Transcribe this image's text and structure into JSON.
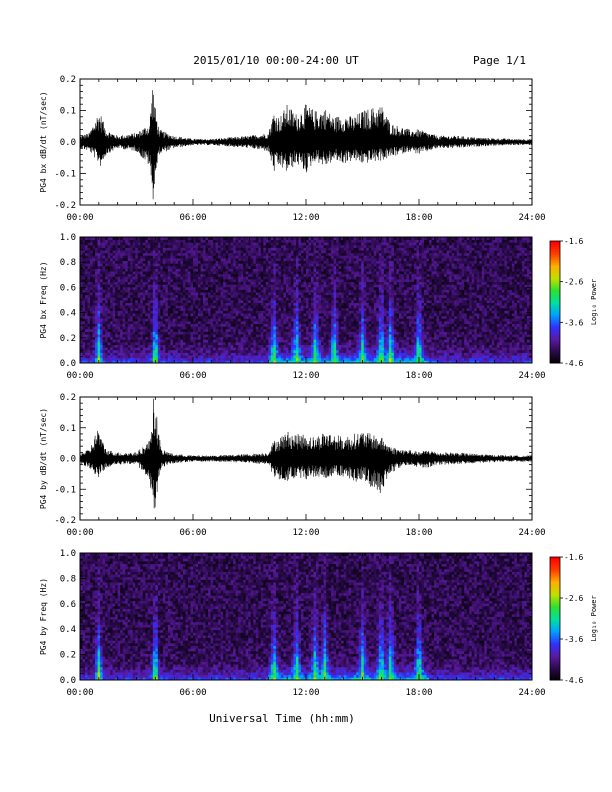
{
  "header": {
    "title": "2015/01/10  00:00-24:00 UT",
    "page_label": "Page 1/1"
  },
  "footer": {
    "xlabel": "Universal Time (hh:mm)"
  },
  "colors": {
    "background": "#ffffff",
    "axis": "#000000",
    "trace": "#000000",
    "spectrogram_colormap": [
      "#000000",
      "#2a0a4a",
      "#5a1aa0",
      "#3030ff",
      "#00a0ff",
      "#00e0a0",
      "#30e030",
      "#c0e000",
      "#ffb000",
      "#ff4000",
      "#ff0000"
    ]
  },
  "chart_data": [
    {
      "type": "line",
      "name": "bx-dbdt-panel",
      "ylabel": "PG4 bx dB/dt (nT/sec)",
      "xlabel": "",
      "xlim": [
        "00:00",
        "24:00"
      ],
      "ylim": [
        -0.2,
        0.2
      ],
      "x_ticks": [
        "00:00",
        "06:00",
        "12:00",
        "18:00",
        "24:00"
      ],
      "y_ticks": [
        "-0.2",
        "-0.1",
        "0.0",
        "0.1",
        "0.2"
      ],
      "grid": false,
      "envelope": {
        "time_hours": [
          0,
          0.5,
          1,
          1.1,
          1.4,
          2,
          3,
          3.7,
          3.85,
          4,
          4.2,
          5,
          6,
          7,
          8,
          9,
          10,
          10.3,
          10.6,
          11,
          11.5,
          12,
          12.5,
          13,
          13.5,
          14,
          14.5,
          15,
          16,
          16.5,
          17,
          17.5,
          18,
          18.5,
          19,
          20,
          21,
          22,
          23,
          24
        ],
        "max": [
          0.02,
          0.03,
          0.1,
          0.09,
          0.04,
          0.02,
          0.03,
          0.06,
          0.2,
          0.11,
          0.04,
          0.02,
          0.01,
          0.01,
          0.015,
          0.02,
          0.03,
          0.1,
          0.08,
          0.12,
          0.09,
          0.12,
          0.1,
          0.11,
          0.08,
          0.09,
          0.08,
          0.1,
          0.12,
          0.06,
          0.05,
          0.04,
          0.04,
          0.03,
          0.02,
          0.02,
          0.015,
          0.012,
          0.01,
          0.01
        ],
        "min": [
          -0.02,
          -0.03,
          -0.07,
          -0.08,
          -0.04,
          -0.02,
          -0.03,
          -0.08,
          -0.2,
          -0.12,
          -0.04,
          -0.02,
          -0.01,
          -0.01,
          -0.015,
          -0.02,
          -0.03,
          -0.1,
          -0.08,
          -0.1,
          -0.07,
          -0.1,
          -0.06,
          -0.08,
          -0.06,
          -0.07,
          -0.06,
          -0.07,
          -0.06,
          -0.05,
          -0.04,
          -0.03,
          -0.04,
          -0.03,
          -0.02,
          -0.02,
          -0.015,
          -0.012,
          -0.01,
          -0.01
        ]
      }
    },
    {
      "type": "heatmap",
      "name": "bx-spectrogram-panel",
      "ylabel": "PG4 bx Freq (Hz)",
      "xlabel": "",
      "xlim": [
        "00:00",
        "24:00"
      ],
      "ylim": [
        0.0,
        1.0
      ],
      "x_ticks": [
        "00:00",
        "06:00",
        "12:00",
        "18:00",
        "24:00"
      ],
      "y_ticks": [
        "0.0",
        "0.2",
        "0.4",
        "0.6",
        "0.8",
        "1.0"
      ],
      "colorbar": {
        "label": "Log₁₀ Power",
        "range": [
          -4.6,
          -1.6
        ],
        "ticks": [
          "-1.6",
          "-2.6",
          "-3.6",
          "-4.6"
        ]
      },
      "activity_bursts_hours": [
        1.0,
        4.0,
        10.3,
        11.5,
        12.5,
        13.5,
        15.0,
        16.0,
        16.5,
        18.0
      ],
      "peak_log_power_near_0_1_hz": -2.4
    },
    {
      "type": "line",
      "name": "by-dbdt-panel",
      "ylabel": "PG4 by dB/dt (nT/sec)",
      "xlabel": "",
      "xlim": [
        "00:00",
        "24:00"
      ],
      "ylim": [
        -0.2,
        0.2
      ],
      "x_ticks": [
        "00:00",
        "06:00",
        "12:00",
        "18:00",
        "24:00"
      ],
      "y_ticks": [
        "-0.2",
        "-0.1",
        "0.0",
        "0.1",
        "0.2"
      ],
      "grid": false,
      "envelope": {
        "time_hours": [
          0,
          0.5,
          1,
          1.1,
          1.4,
          2,
          3,
          3.7,
          3.9,
          4.1,
          4.3,
          5,
          6,
          7,
          8,
          9,
          10,
          10.3,
          10.6,
          11,
          11.5,
          12,
          12.5,
          13,
          13.5,
          14,
          14.5,
          15,
          16,
          16.5,
          17,
          17.5,
          18,
          18.5,
          19,
          20,
          21,
          22,
          23,
          24
        ],
        "max": [
          0.02,
          0.03,
          0.11,
          0.07,
          0.03,
          0.02,
          0.02,
          0.06,
          0.2,
          0.14,
          0.03,
          0.015,
          0.01,
          0.01,
          0.012,
          0.015,
          0.02,
          0.06,
          0.07,
          0.09,
          0.08,
          0.08,
          0.07,
          0.09,
          0.08,
          0.07,
          0.08,
          0.09,
          0.07,
          0.04,
          0.03,
          0.03,
          0.02,
          0.03,
          0.02,
          0.02,
          0.015,
          0.012,
          0.01,
          0.01
        ],
        "min": [
          -0.02,
          -0.03,
          -0.07,
          -0.05,
          -0.03,
          -0.02,
          -0.02,
          -0.07,
          -0.19,
          -0.13,
          -0.03,
          -0.015,
          -0.01,
          -0.01,
          -0.012,
          -0.015,
          -0.02,
          -0.06,
          -0.07,
          -0.08,
          -0.06,
          -0.07,
          -0.06,
          -0.07,
          -0.06,
          -0.06,
          -0.08,
          -0.07,
          -0.12,
          -0.05,
          -0.03,
          -0.02,
          -0.03,
          -0.03,
          -0.02,
          -0.02,
          -0.015,
          -0.012,
          -0.01,
          -0.01
        ]
      }
    },
    {
      "type": "heatmap",
      "name": "by-spectrogram-panel",
      "ylabel": "PG4 by Freq (Hz)",
      "xlabel": "",
      "xlim": [
        "00:00",
        "24:00"
      ],
      "ylim": [
        0.0,
        1.0
      ],
      "x_ticks": [
        "00:00",
        "06:00",
        "12:00",
        "18:00",
        "24:00"
      ],
      "y_ticks": [
        "0.0",
        "0.2",
        "0.4",
        "0.6",
        "0.8",
        "1.0"
      ],
      "colorbar": {
        "label": "Log₁₀ Power",
        "range": [
          -4.6,
          -1.6
        ],
        "ticks": [
          "-1.6",
          "-2.6",
          "-3.6",
          "-4.6"
        ]
      },
      "activity_bursts_hours": [
        1.0,
        4.0,
        10.3,
        11.5,
        12.5,
        13.0,
        15.0,
        16.0,
        16.5,
        18.0
      ],
      "peak_log_power_near_0_1_hz": -2.4
    }
  ]
}
